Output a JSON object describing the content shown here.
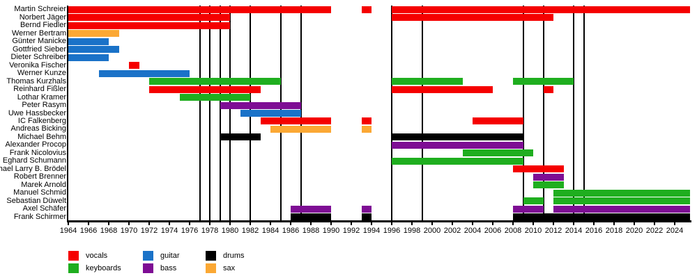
{
  "chart_data": {
    "type": "timeline",
    "title": "",
    "x_axis": {
      "min_year": 1964,
      "max_year": 2025.5,
      "tick_first": 1964,
      "tick_last": 2024,
      "tick_step": 2
    },
    "grid": "vertical-event-lines",
    "legend_position": "bottom",
    "instrument_colors": {
      "vocals": "#f50000",
      "guitar": "#1a72c8",
      "keyboards": "#1fae1f",
      "bass": "#7e0d94",
      "drums": "#000000",
      "sax": "#fba834"
    },
    "event_lines_years": [
      1977,
      1978,
      1979,
      1980,
      1982,
      1985,
      1987,
      1996,
      1999,
      2009,
      2011,
      2014,
      2015
    ],
    "members": [
      {
        "name": "Martin Schreier",
        "instrument": "vocals",
        "periods": [
          [
            1964,
            1990
          ],
          [
            1993,
            1994
          ],
          [
            1996,
            2025.5
          ]
        ]
      },
      {
        "name": "Norbert Jäger",
        "instrument": "vocals",
        "periods": [
          [
            1964,
            1980
          ],
          [
            1996,
            2012
          ]
        ]
      },
      {
        "name": "Bernd Fiedler",
        "instrument": "vocals",
        "periods": [
          [
            1964,
            1980
          ]
        ]
      },
      {
        "name": "Werner Bertram",
        "instrument": "sax",
        "periods": [
          [
            1964,
            1969
          ]
        ]
      },
      {
        "name": "Günter Manicke",
        "instrument": "guitar",
        "periods": [
          [
            1964,
            1968
          ]
        ]
      },
      {
        "name": "Gottfried Sieber",
        "instrument": "guitar",
        "periods": [
          [
            1964,
            1969
          ]
        ]
      },
      {
        "name": "Dieter Schreiber",
        "instrument": "guitar",
        "periods": [
          [
            1964,
            1968
          ]
        ]
      },
      {
        "name": "Veronika Fischer",
        "instrument": "vocals",
        "periods": [
          [
            1970,
            1971
          ]
        ]
      },
      {
        "name": "Werner Kunze",
        "instrument": "guitar",
        "periods": [
          [
            1967,
            1976
          ]
        ]
      },
      {
        "name": "Thomas Kurzhals",
        "instrument": "keyboards",
        "periods": [
          [
            1972,
            1985
          ],
          [
            1996,
            2003
          ],
          [
            2008,
            2014
          ]
        ]
      },
      {
        "name": "Reinhard Fißler",
        "instrument": "vocals",
        "periods": [
          [
            1972,
            1983
          ],
          [
            1996,
            2006
          ],
          [
            2011,
            2012
          ]
        ]
      },
      {
        "name": "Lothar Kramer",
        "instrument": "keyboards",
        "periods": [
          [
            1975,
            1982
          ]
        ]
      },
      {
        "name": "Peter Rasym",
        "instrument": "bass",
        "periods": [
          [
            1979,
            1987
          ]
        ]
      },
      {
        "name": "Uwe Hassbecker",
        "instrument": "guitar",
        "periods": [
          [
            1981,
            1987
          ]
        ]
      },
      {
        "name": "IC Falkenberg",
        "instrument": "vocals",
        "periods": [
          [
            1983,
            1990
          ],
          [
            1993,
            1994
          ],
          [
            2004,
            2009
          ]
        ]
      },
      {
        "name": "Andreas Bicking",
        "instrument": "sax",
        "periods": [
          [
            1984,
            1990
          ],
          [
            1993,
            1994
          ]
        ]
      },
      {
        "name": "Michael Behm",
        "instrument": "drums",
        "periods": [
          [
            1979,
            1983
          ],
          [
            1996,
            2009
          ]
        ]
      },
      {
        "name": "Alexander Procop",
        "instrument": "bass",
        "periods": [
          [
            1996,
            2009
          ]
        ]
      },
      {
        "name": "Frank Nicolovius",
        "instrument": "keyboards",
        "periods": [
          [
            2003,
            2010
          ]
        ]
      },
      {
        "name": "Eghard Schumann",
        "instrument": "keyboards",
        "periods": [
          [
            1996,
            2009
          ]
        ]
      },
      {
        "name": "Michael Larry B. Brödel",
        "instrument": "vocals",
        "periods": [
          [
            2008,
            2013
          ]
        ]
      },
      {
        "name": "Robert Brenner",
        "instrument": "bass",
        "periods": [
          [
            2010,
            2013
          ]
        ]
      },
      {
        "name": "Marek Arnold",
        "instrument": "keyboards",
        "periods": [
          [
            2010,
            2013
          ]
        ]
      },
      {
        "name": "Manuel Schmid",
        "instrument": "keyboards",
        "periods": [
          [
            2012,
            2025.5
          ]
        ]
      },
      {
        "name": "Sebastian Düwelt",
        "instrument": "keyboards",
        "periods": [
          [
            2009,
            2011
          ],
          [
            2012,
            2025.5
          ]
        ]
      },
      {
        "name": "Axel Schäfer",
        "instrument": "bass",
        "periods": [
          [
            1986,
            1990
          ],
          [
            1993,
            1994
          ],
          [
            2008,
            2011
          ],
          [
            2012,
            2025.5
          ]
        ]
      },
      {
        "name": "Frank Schirmer",
        "instrument": "drums",
        "periods": [
          [
            1986,
            1990
          ],
          [
            1993,
            1994
          ],
          [
            2008,
            2025.5
          ]
        ]
      }
    ],
    "legend_rows": [
      [
        {
          "label": "vocals",
          "color_key": "vocals"
        },
        {
          "label": "guitar",
          "color_key": "guitar"
        },
        {
          "label": "drums",
          "color_key": "drums"
        }
      ],
      [
        {
          "label": "keyboards",
          "color_key": "keyboards"
        },
        {
          "label": "bass",
          "color_key": "bass"
        },
        {
          "label": "sax",
          "color_key": "sax"
        }
      ]
    ]
  }
}
